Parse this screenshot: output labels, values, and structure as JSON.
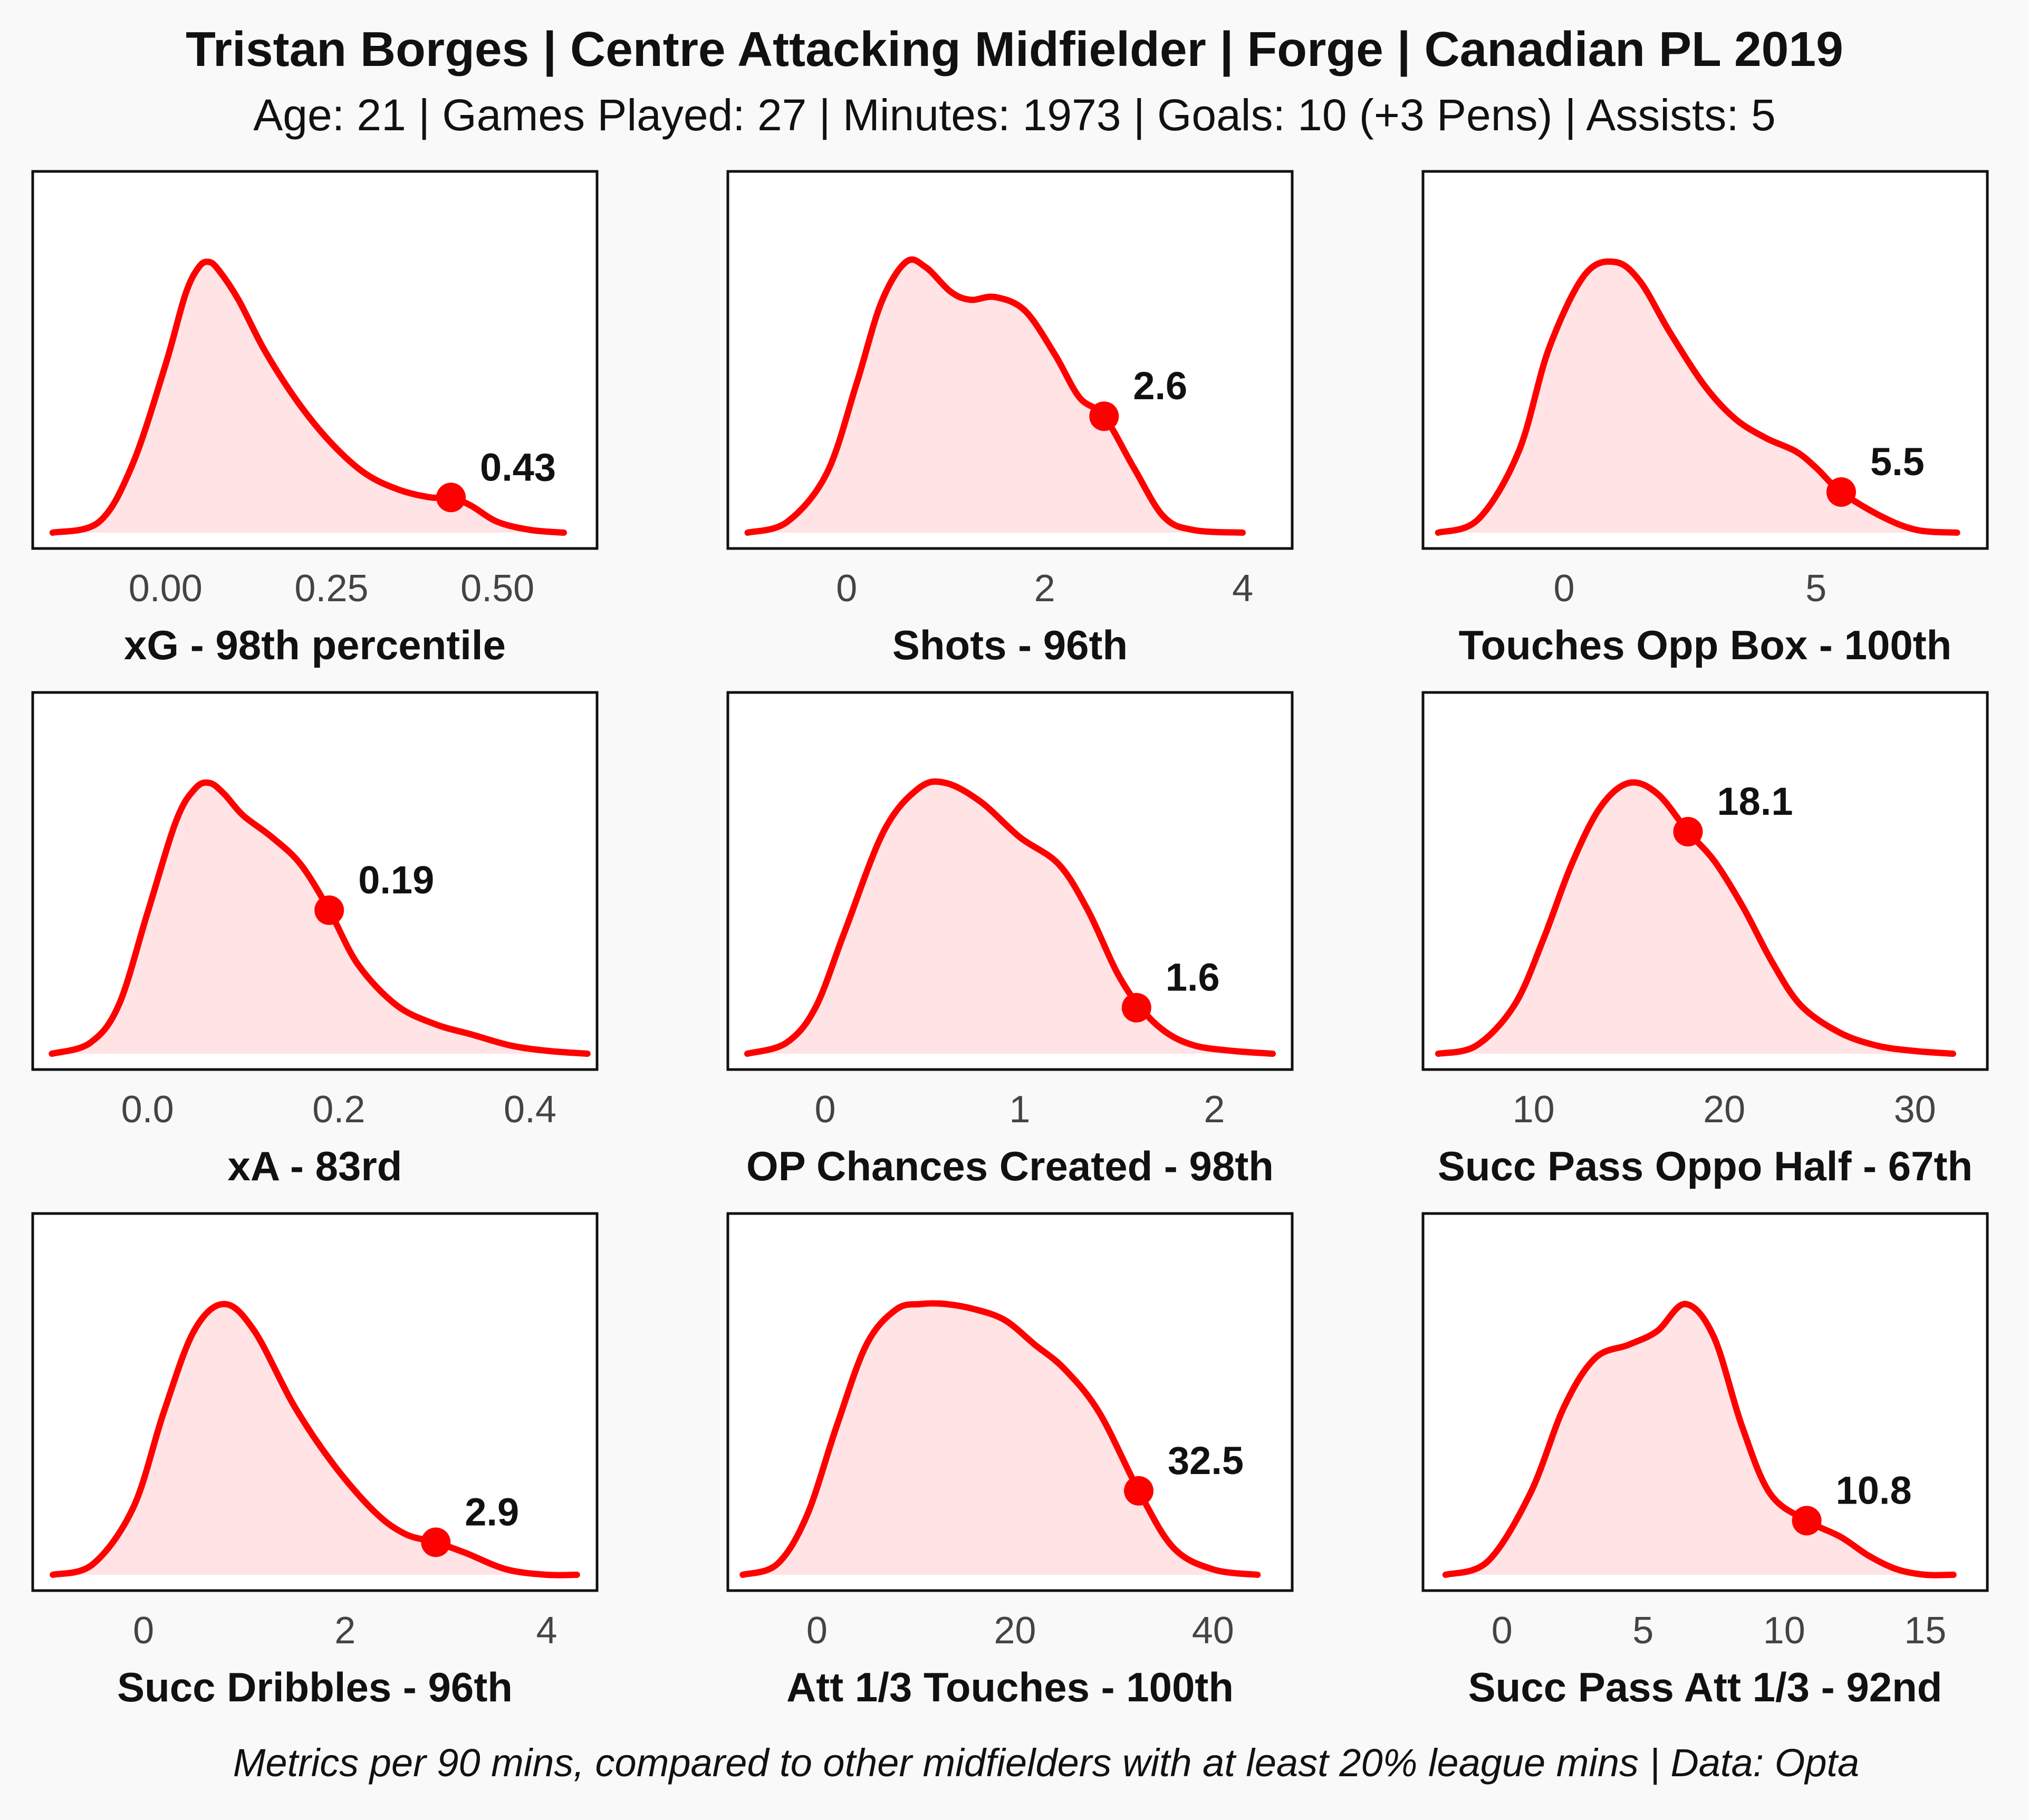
{
  "header": {
    "title": "Tristan Borges | Centre Attacking Midfielder | Forge | Canadian PL 2019",
    "subtitle": "Age: 21 | Games Played: 27 | Minutes: 1973 | Goals: 10 (+3 Pens) | Assists: 5"
  },
  "footer": "Metrics per 90 mins, compared to other midfielders with at least 20% league mins | Data: Opta",
  "colors": {
    "line": "#ff0000",
    "fill": "#ffe3e5",
    "panel": "#ffffff",
    "background": "#f9f9f9"
  },
  "chart_data": [
    {
      "type": "area",
      "xlabel": "xG - 98th percentile",
      "xlim": [
        -0.2,
        0.65
      ],
      "ticks": [
        0.0,
        0.25,
        0.5
      ],
      "tick_labels": [
        "0.00",
        "0.25",
        "0.50"
      ],
      "x": [
        -0.17,
        -0.1,
        -0.05,
        0.0,
        0.03,
        0.05,
        0.065,
        0.08,
        0.11,
        0.15,
        0.2,
        0.25,
        0.3,
        0.35,
        0.4,
        0.43,
        0.46,
        0.5,
        0.55,
        0.6
      ],
      "y": [
        0.0,
        0.04,
        0.25,
        0.62,
        0.88,
        0.98,
        1.0,
        0.97,
        0.86,
        0.67,
        0.48,
        0.33,
        0.22,
        0.16,
        0.13,
        0.13,
        0.1,
        0.04,
        0.01,
        0.0
      ],
      "player_value": 0.43,
      "player_y": 0.13,
      "label": "0.43"
    },
    {
      "type": "area",
      "xlabel": "Shots - 96th",
      "xlim": [
        -1.2,
        4.5
      ],
      "ticks": [
        0,
        2,
        4
      ],
      "tick_labels": [
        "0",
        "2",
        "4"
      ],
      "x": [
        -1.0,
        -0.6,
        -0.2,
        0.1,
        0.35,
        0.6,
        0.8,
        1.05,
        1.25,
        1.5,
        1.8,
        2.1,
        2.35,
        2.6,
        2.9,
        3.2,
        3.5,
        4.0
      ],
      "y": [
        0.0,
        0.04,
        0.22,
        0.55,
        0.85,
        1.0,
        0.98,
        0.89,
        0.86,
        0.87,
        0.82,
        0.66,
        0.5,
        0.43,
        0.24,
        0.06,
        0.01,
        0.0
      ],
      "player_value": 2.6,
      "player_y": 0.43,
      "label": "2.6"
    },
    {
      "type": "area",
      "xlabel": "Touches Opp Box - 100th",
      "xlim": [
        -2.8,
        8.4
      ],
      "ticks": [
        0,
        5
      ],
      "tick_labels": [
        "0",
        "5"
      ],
      "x": [
        -2.5,
        -1.7,
        -0.9,
        -0.3,
        0.4,
        1.0,
        1.5,
        2.1,
        2.8,
        3.4,
        4.0,
        4.6,
        5.0,
        5.5,
        6.3,
        7.0,
        7.8
      ],
      "y": [
        0.0,
        0.05,
        0.3,
        0.68,
        0.95,
        1.0,
        0.93,
        0.74,
        0.54,
        0.42,
        0.35,
        0.3,
        0.24,
        0.15,
        0.06,
        0.01,
        0.0
      ],
      "player_value": 5.5,
      "player_y": 0.15,
      "label": "5.5"
    },
    {
      "type": "area",
      "xlabel": "xA - 83rd",
      "xlim": [
        -0.12,
        0.47
      ],
      "ticks": [
        0.0,
        0.2,
        0.4
      ],
      "tick_labels": [
        "0.0",
        "0.2",
        "0.4"
      ],
      "x": [
        -0.1,
        -0.06,
        -0.03,
        0.0,
        0.03,
        0.05,
        0.065,
        0.08,
        0.1,
        0.13,
        0.16,
        0.19,
        0.22,
        0.26,
        0.3,
        0.34,
        0.38,
        0.42,
        0.46
      ],
      "y": [
        0.0,
        0.04,
        0.18,
        0.52,
        0.86,
        0.98,
        1.0,
        0.96,
        0.88,
        0.8,
        0.7,
        0.53,
        0.33,
        0.18,
        0.11,
        0.07,
        0.03,
        0.01,
        0.0
      ],
      "player_value": 0.19,
      "player_y": 0.53,
      "label": "0.19"
    },
    {
      "type": "area",
      "xlabel": "OP Chances Created - 98th",
      "xlim": [
        -0.5,
        2.4
      ],
      "ticks": [
        0,
        1,
        2
      ],
      "tick_labels": [
        "0",
        "1",
        "2"
      ],
      "x": [
        -0.4,
        -0.2,
        -0.05,
        0.1,
        0.3,
        0.48,
        0.62,
        0.8,
        1.0,
        1.2,
        1.35,
        1.5,
        1.62,
        1.75,
        1.9,
        2.1,
        2.3
      ],
      "y": [
        0.0,
        0.04,
        0.17,
        0.45,
        0.82,
        0.98,
        1.0,
        0.93,
        0.8,
        0.7,
        0.53,
        0.3,
        0.17,
        0.08,
        0.03,
        0.01,
        0.0
      ],
      "player_value": 1.6,
      "player_y": 0.17,
      "label": "1.6"
    },
    {
      "type": "area",
      "xlabel": "Succ Pass Oppo Half - 67th",
      "xlim": [
        4.2,
        33.8
      ],
      "ticks": [
        10,
        20,
        30
      ],
      "tick_labels": [
        "10",
        "20",
        "30"
      ],
      "x": [
        5.0,
        7.0,
        9.0,
        10.5,
        12.0,
        13.5,
        15.0,
        16.5,
        18.1,
        19.5,
        21.0,
        22.5,
        24.0,
        26.0,
        28.0,
        30.0,
        32.0
      ],
      "y": [
        0.0,
        0.03,
        0.18,
        0.42,
        0.7,
        0.91,
        1.0,
        0.96,
        0.82,
        0.71,
        0.54,
        0.34,
        0.18,
        0.08,
        0.03,
        0.01,
        0.0
      ],
      "player_value": 18.1,
      "player_y": 0.82,
      "label": "18.1"
    },
    {
      "type": "area",
      "xlabel": "Succ Dribbles - 96th",
      "xlim": [
        -1.1,
        4.5
      ],
      "ticks": [
        0,
        2,
        4
      ],
      "tick_labels": [
        "0",
        "2",
        "4"
      ],
      "x": [
        -0.9,
        -0.5,
        -0.1,
        0.2,
        0.5,
        0.8,
        1.1,
        1.5,
        1.9,
        2.3,
        2.6,
        2.9,
        3.2,
        3.6,
        4.0,
        4.3
      ],
      "y": [
        0.0,
        0.04,
        0.25,
        0.6,
        0.9,
        1.0,
        0.9,
        0.62,
        0.4,
        0.23,
        0.15,
        0.12,
        0.08,
        0.02,
        0.0,
        0.0
      ],
      "player_value": 2.9,
      "player_y": 0.12,
      "label": "2.9"
    },
    {
      "type": "area",
      "xlabel": "Att 1/3 Touches - 100th",
      "xlim": [
        -9,
        48
      ],
      "ticks": [
        0,
        20,
        40
      ],
      "tick_labels": [
        "0",
        "20",
        "40"
      ],
      "x": [
        -7.5,
        -4.0,
        -1.0,
        2.0,
        5.0,
        8.0,
        10.5,
        13.0,
        16.0,
        19.0,
        22.0,
        25.0,
        28.5,
        32.5,
        36.0,
        40.0,
        44.5
      ],
      "y": [
        0.0,
        0.04,
        0.22,
        0.55,
        0.85,
        0.98,
        1.0,
        1.0,
        0.98,
        0.94,
        0.85,
        0.76,
        0.6,
        0.31,
        0.1,
        0.02,
        0.0
      ],
      "player_value": 32.5,
      "player_y": 0.31,
      "label": "32.5"
    },
    {
      "type": "area",
      "xlabel": "Succ Pass Att 1/3 - 92nd",
      "xlim": [
        -2.8,
        17.2
      ],
      "ticks": [
        0,
        5,
        10,
        15
      ],
      "tick_labels": [
        "0",
        "5",
        "10",
        "15"
      ],
      "x": [
        -2.0,
        -0.5,
        1.0,
        2.2,
        3.3,
        4.5,
        5.5,
        6.5,
        7.5,
        8.5,
        9.5,
        10.8,
        12.0,
        13.0,
        14.0,
        15.0,
        16.0
      ],
      "y": [
        0.0,
        0.05,
        0.3,
        0.62,
        0.8,
        0.85,
        0.9,
        1.0,
        0.88,
        0.55,
        0.3,
        0.2,
        0.14,
        0.07,
        0.02,
        0.0,
        0.0
      ],
      "player_value": 10.8,
      "player_y": 0.2,
      "label": "10.8"
    }
  ]
}
